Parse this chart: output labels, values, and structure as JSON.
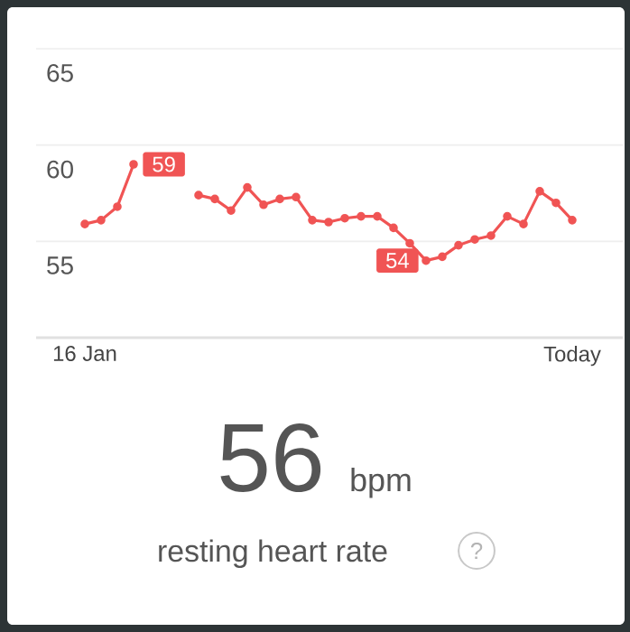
{
  "chart_data": {
    "type": "line",
    "categories": [
      "16 Jan",
      null,
      null,
      null,
      null,
      null,
      null,
      null,
      null,
      null,
      null,
      null,
      null,
      null,
      null,
      null,
      null,
      null,
      null,
      null,
      null,
      null,
      null,
      null,
      null,
      null,
      null,
      null,
      null,
      null,
      "Today"
    ],
    "series": [
      {
        "color": "#f05454",
        "values": [
          55.9,
          56.1,
          56.8,
          59,
          null,
          null,
          null,
          57.4,
          57.2,
          56.6,
          57.8,
          56.9,
          57.2,
          57.3,
          56.1,
          56.0,
          56.2,
          56.3,
          56.3,
          55.7,
          54.9,
          54,
          54.2,
          54.8,
          55.1,
          55.3,
          56.3,
          55.9,
          57.6,
          57.0,
          56.1
        ],
        "value_labels": [
          null,
          null,
          null,
          "59",
          null,
          null,
          null,
          null,
          null,
          null,
          null,
          null,
          null,
          null,
          null,
          null,
          null,
          null,
          null,
          null,
          null,
          "54",
          null,
          null,
          null,
          null,
          null,
          null,
          null,
          null,
          null
        ]
      }
    ],
    "ylim": [
      50,
      65
    ],
    "yticks": [
      55,
      60,
      65
    ],
    "grid": "y",
    "marker": "circle",
    "annotations": [
      "56",
      "bpm",
      "resting heart rate",
      "?"
    ]
  }
}
